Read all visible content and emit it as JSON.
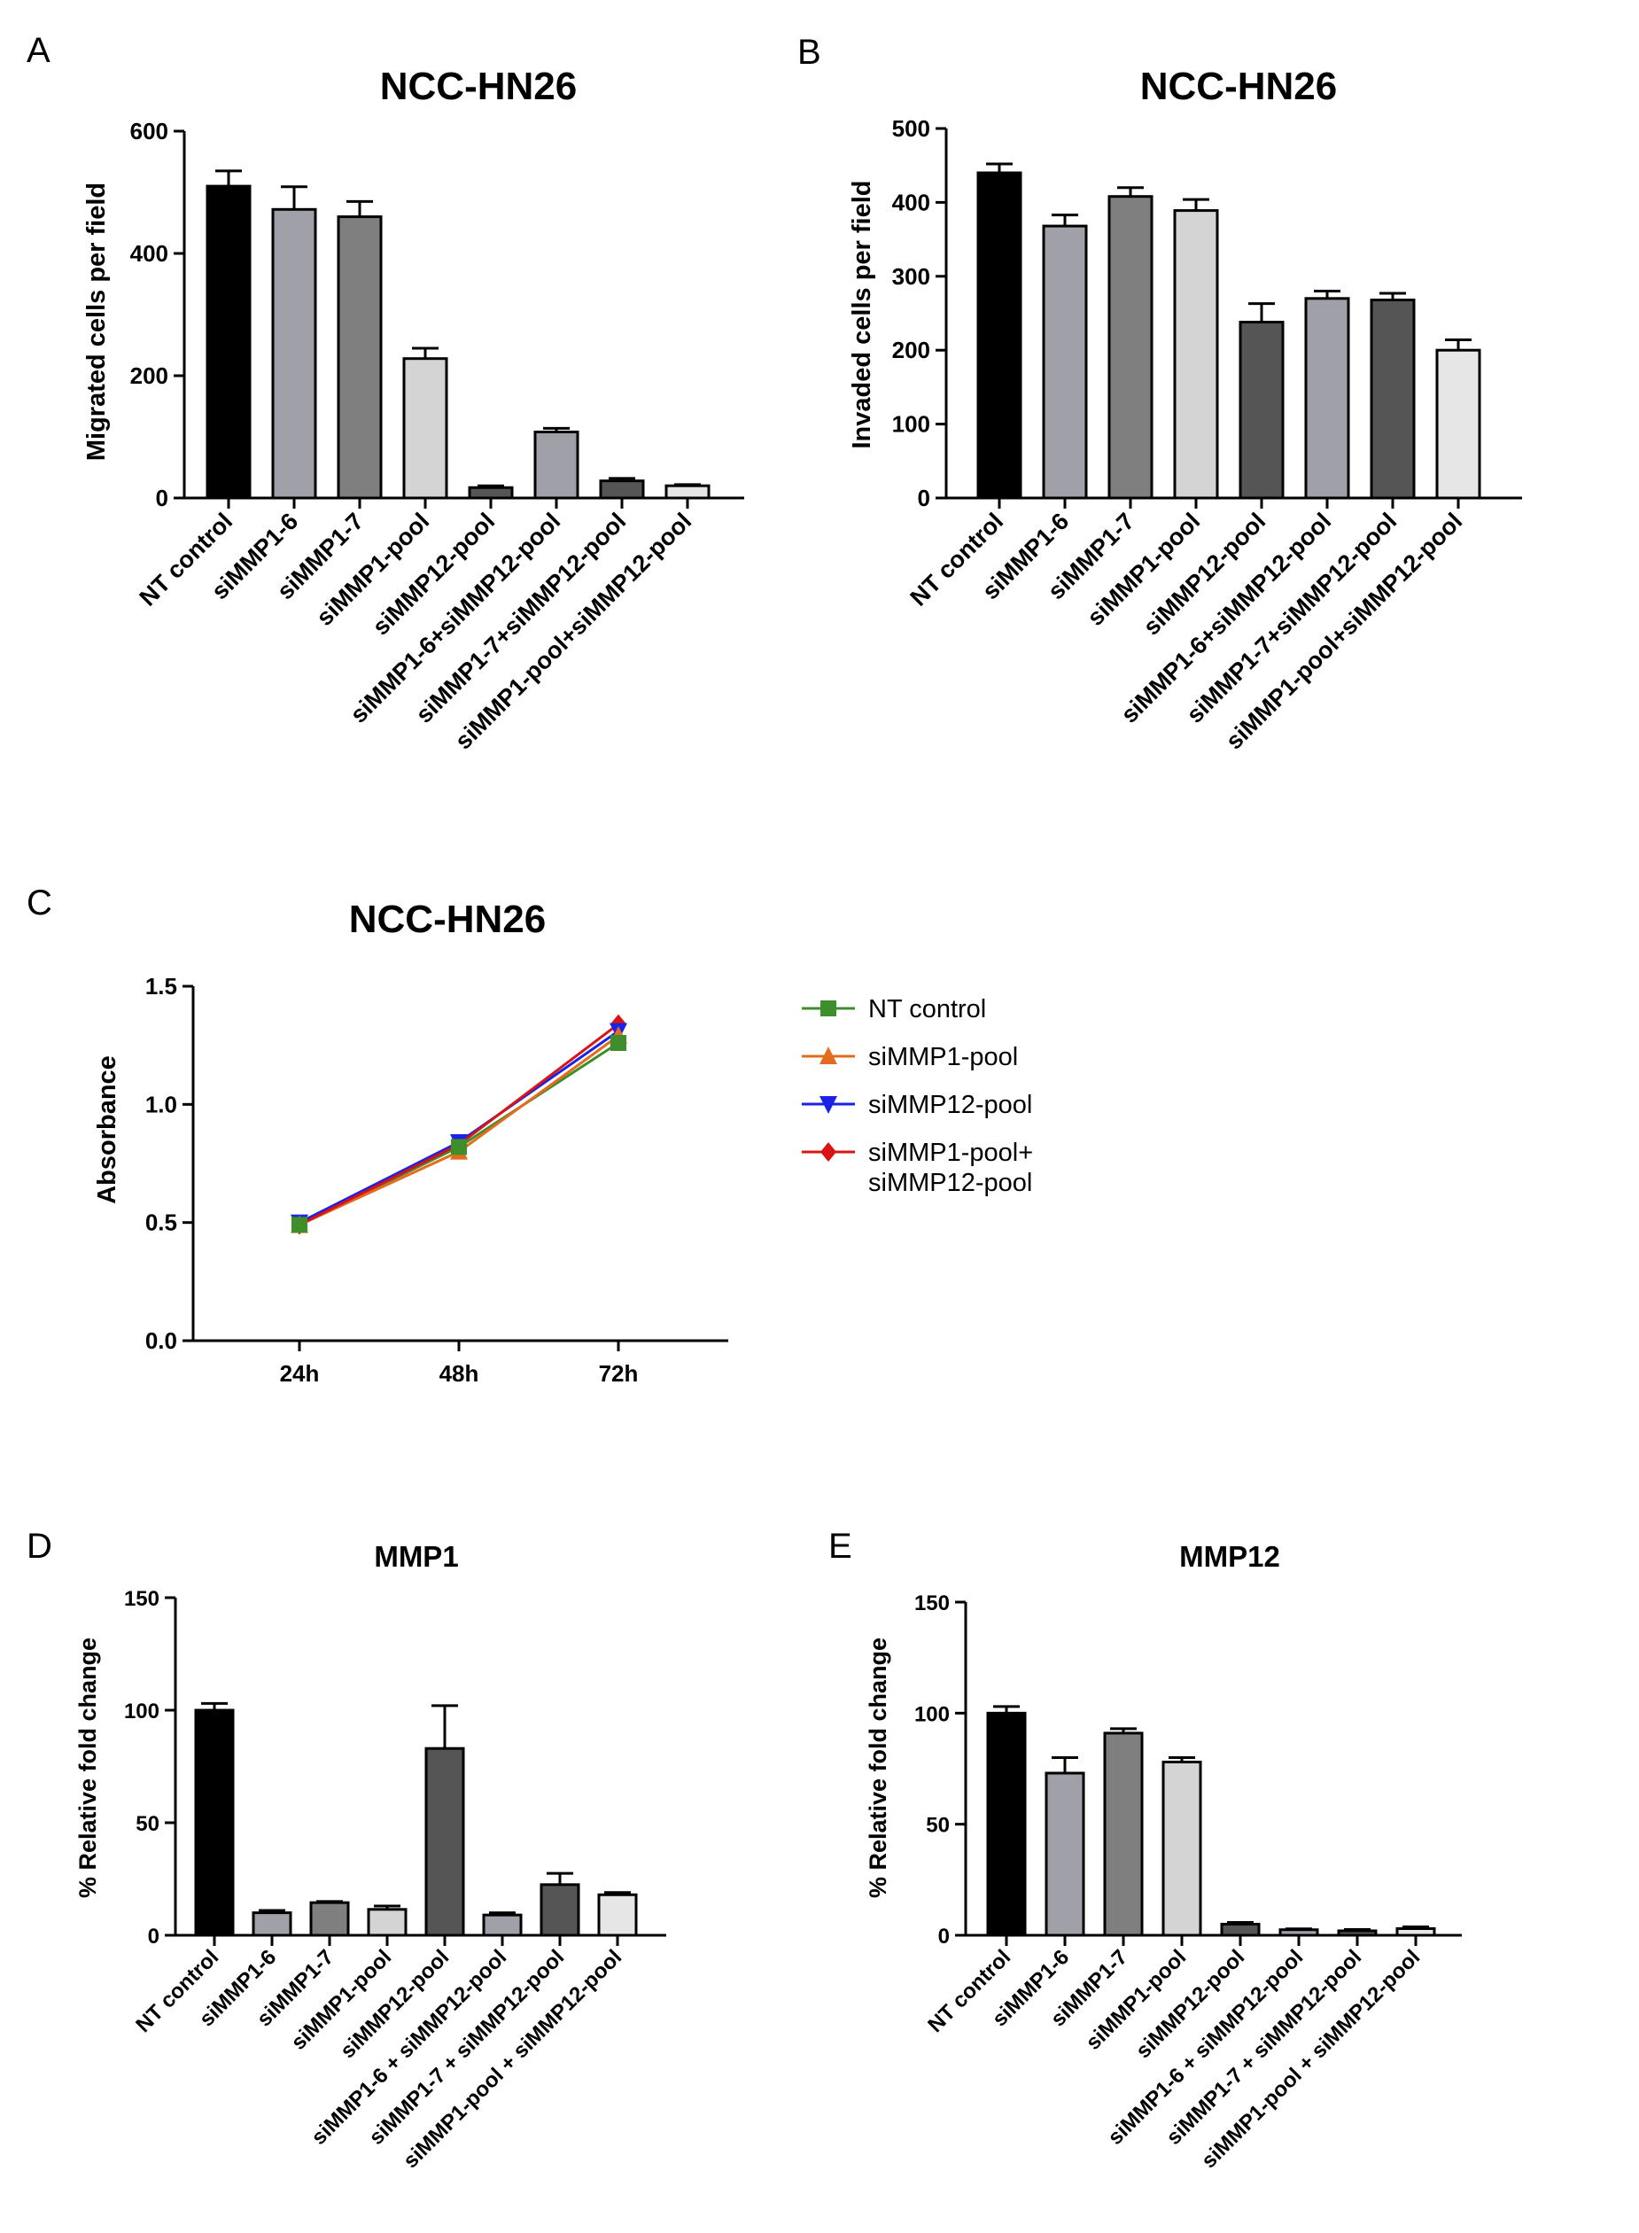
{
  "chart_data": [
    {
      "panel": "A",
      "type": "bar",
      "title": "NCC-HN26",
      "xlabel": "",
      "ylabel": "Migrated cells per field",
      "ylim": [
        0,
        600
      ],
      "yticks": [
        0,
        200,
        400,
        600
      ],
      "categories": [
        "NT control",
        "siMMP1-6",
        "siMMP1-7",
        "siMMP1-pool",
        "siMMP12-pool",
        "siMMP1-6+siMMP12-pool",
        "siMMP1-7+siMMP12-pool",
        "siMMP1-pool+siMMP12-pool"
      ],
      "values": [
        510,
        472,
        460,
        228,
        17,
        108,
        28,
        20
      ],
      "errors": [
        25,
        37,
        25,
        17,
        3,
        6,
        4,
        2
      ],
      "colors": [
        "#000000",
        "#a0a0a8",
        "#7f7f7f",
        "#d4d4d4",
        "#555555",
        "#a0a0a8",
        "#555555",
        "#e6e6e6"
      ],
      "grid": false
    },
    {
      "panel": "B",
      "type": "bar",
      "title": "NCC-HN26",
      "xlabel": "",
      "ylabel": "Invaded cells per field",
      "ylim": [
        0,
        500
      ],
      "yticks": [
        0,
        100,
        200,
        300,
        400,
        500
      ],
      "categories": [
        "NT control",
        "siMMP1-6",
        "siMMP1-7",
        "siMMP1-pool",
        "siMMP12-pool",
        "siMMP1-6+siMMP12-pool",
        "siMMP1-7+siMMP12-pool",
        "siMMP1-pool+siMMP12-pool"
      ],
      "values": [
        440,
        368,
        408,
        389,
        238,
        270,
        268,
        200
      ],
      "errors": [
        12,
        15,
        12,
        15,
        25,
        10,
        9,
        14
      ],
      "colors": [
        "#000000",
        "#a0a0a8",
        "#7f7f7f",
        "#d4d4d4",
        "#555555",
        "#a0a0a8",
        "#555555",
        "#e6e6e6"
      ],
      "grid": false
    },
    {
      "panel": "C",
      "type": "line",
      "title": "NCC-HN26",
      "xlabel": "",
      "ylabel": "Absorbance",
      "ylim": [
        0,
        1.5
      ],
      "yticks": [
        "0.0",
        "0.5",
        "1.0",
        "1.5"
      ],
      "x": [
        "24h",
        "48h",
        "72h"
      ],
      "legend_position": "right",
      "series": [
        {
          "name": "NT control",
          "values": [
            0.49,
            0.82,
            1.26
          ],
          "color": "#3e8e2c",
          "marker": "square"
        },
        {
          "name": "siMMP1-pool",
          "values": [
            0.49,
            0.8,
            1.29
          ],
          "color": "#e36c1e",
          "marker": "triangle-up"
        },
        {
          "name": "siMMP12-pool",
          "values": [
            0.5,
            0.84,
            1.31
          ],
          "color": "#1a22e8",
          "marker": "triangle-down"
        },
        {
          "name": "siMMP1-pool+ siMMP12-pool",
          "name_lines": [
            "siMMP1-pool+",
            "siMMP12-pool"
          ],
          "values": [
            0.49,
            0.83,
            1.34
          ],
          "color": "#d81414",
          "marker": "diamond"
        }
      ],
      "grid": false
    },
    {
      "panel": "D",
      "type": "bar",
      "title": "MMP1",
      "xlabel": "",
      "ylabel": "% Relative fold change",
      "ylim": [
        0,
        150
      ],
      "yticks": [
        0,
        50,
        100,
        150
      ],
      "categories": [
        "NT control",
        "siMMP1-6",
        "siMMP1-7",
        "siMMP1-pool",
        "siMMP12-pool",
        "siMMP1-6 + siMMP12-pool",
        "siMMP1-7 + siMMP12-pool",
        "siMMP1-pool + siMMP12-pool"
      ],
      "values": [
        100,
        10,
        14.5,
        11.5,
        83,
        9,
        22.5,
        18
      ],
      "errors": [
        3,
        1,
        0.5,
        1.5,
        19,
        1,
        5,
        1
      ],
      "colors": [
        "#000000",
        "#a0a0a8",
        "#7f7f7f",
        "#d4d4d4",
        "#555555",
        "#a0a0a8",
        "#555555",
        "#e6e6e6"
      ],
      "grid": false
    },
    {
      "panel": "E",
      "type": "bar",
      "title": "MMP12",
      "xlabel": "",
      "ylabel": "% Relative fold change",
      "ylim": [
        0,
        150
      ],
      "yticks": [
        0,
        50,
        100,
        150
      ],
      "categories": [
        "NT control",
        "siMMP1-6",
        "siMMP1-7",
        "siMMP1-pool",
        "siMMP12-pool",
        "siMMP1-6 + siMMP12-pool",
        "siMMP1-7 + siMMP12-pool",
        "siMMP1-pool + siMMP12-pool"
      ],
      "values": [
        100,
        73,
        91,
        78,
        5,
        2.5,
        2,
        3
      ],
      "errors": [
        3,
        7,
        2,
        2,
        0.8,
        0.4,
        0.6,
        0.8
      ],
      "colors": [
        "#000000",
        "#a0a0a8",
        "#7f7f7f",
        "#d4d4d4",
        "#555555",
        "#a0a0a8",
        "#555555",
        "#e6e6e6"
      ],
      "grid": false
    }
  ]
}
